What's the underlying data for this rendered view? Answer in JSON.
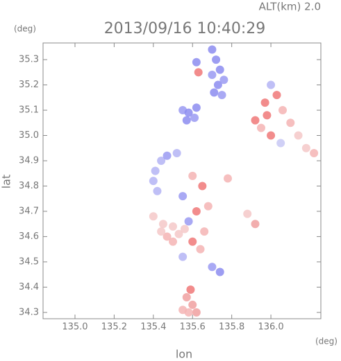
{
  "chart_data": {
    "type": "scatter",
    "title": "2013/09/16 10:40:29",
    "subtitle": "ALT(km) 2.0",
    "x_label": "lon",
    "y_label": "lat",
    "x_unit": "(deg)",
    "y_unit": "(deg)",
    "xlim": [
      134.837,
      136.255
    ],
    "ylim": [
      34.275,
      35.366
    ],
    "xticks": [
      {
        "value": 135,
        "label": "135.0"
      },
      135.2,
      135.4,
      135.6,
      135.8,
      {
        "value": 136,
        "label": "136.0"
      }
    ],
    "yticks": [
      34.3,
      34.4,
      34.5,
      34.6,
      34.7,
      34.8,
      34.9,
      {
        "value": 35,
        "label": "35.0"
      },
      35.1,
      35.2,
      35.3
    ],
    "points": [
      {
        "x": 135.7,
        "y": 35.34,
        "color": "#8c8cf0"
      },
      {
        "x": 135.72,
        "y": 35.3,
        "color": "#8c8cf0"
      },
      {
        "x": 135.74,
        "y": 35.26,
        "color": "#8c8cf0"
      },
      {
        "x": 135.7,
        "y": 35.24,
        "color": "#9a9af2"
      },
      {
        "x": 135.73,
        "y": 35.2,
        "color": "#8c8cf0"
      },
      {
        "x": 135.76,
        "y": 35.22,
        "color": "#9a9af2"
      },
      {
        "x": 135.71,
        "y": 35.17,
        "color": "#8c8cf0"
      },
      {
        "x": 135.75,
        "y": 35.16,
        "color": "#9a9af2"
      },
      {
        "x": 135.62,
        "y": 35.29,
        "color": "#8c8cf0"
      },
      {
        "x": 135.63,
        "y": 35.25,
        "color": "#f07878"
      },
      {
        "x": 135.55,
        "y": 35.1,
        "color": "#9a9af2"
      },
      {
        "x": 135.58,
        "y": 35.09,
        "color": "#8c8cf0"
      },
      {
        "x": 135.61,
        "y": 35.07,
        "color": "#9a9af2"
      },
      {
        "x": 135.57,
        "y": 35.06,
        "color": "#8c8cf0"
      },
      {
        "x": 135.62,
        "y": 35.11,
        "color": "#8c8cf0"
      },
      {
        "x": 135.44,
        "y": 34.9,
        "color": "#b4b4f5"
      },
      {
        "x": 135.41,
        "y": 34.86,
        "color": "#b4b4f5"
      },
      {
        "x": 135.4,
        "y": 34.82,
        "color": "#b4b4f5"
      },
      {
        "x": 135.42,
        "y": 34.78,
        "color": "#b4b4f5"
      },
      {
        "x": 135.47,
        "y": 34.92,
        "color": "#9a9af2"
      },
      {
        "x": 135.52,
        "y": 34.93,
        "color": "#b4b4f5"
      },
      {
        "x": 136.0,
        "y": 35.2,
        "color": "#b4b4f5"
      },
      {
        "x": 136.03,
        "y": 35.16,
        "color": "#f07878"
      },
      {
        "x": 135.97,
        "y": 35.13,
        "color": "#f07878"
      },
      {
        "x": 136.06,
        "y": 35.1,
        "color": "#f5b4b4"
      },
      {
        "x": 136.1,
        "y": 35.05,
        "color": "#f5b4b4"
      },
      {
        "x": 136.14,
        "y": 35.0,
        "color": "#f5c8c8"
      },
      {
        "x": 136.18,
        "y": 34.95,
        "color": "#f5c8c8"
      },
      {
        "x": 136.22,
        "y": 34.93,
        "color": "#f5b4b4"
      },
      {
        "x": 135.92,
        "y": 35.06,
        "color": "#f07878"
      },
      {
        "x": 135.95,
        "y": 35.03,
        "color": "#f5b4b4"
      },
      {
        "x": 136.0,
        "y": 35.0,
        "color": "#f07878"
      },
      {
        "x": 136.05,
        "y": 34.97,
        "color": "#c8c8f5"
      },
      {
        "x": 135.98,
        "y": 35.08,
        "color": "#f07878"
      },
      {
        "x": 135.6,
        "y": 34.84,
        "color": "#f5b4b4"
      },
      {
        "x": 135.65,
        "y": 34.8,
        "color": "#f07878"
      },
      {
        "x": 135.55,
        "y": 34.76,
        "color": "#9a9af2"
      },
      {
        "x": 135.68,
        "y": 34.72,
        "color": "#f5b4b4"
      },
      {
        "x": 135.62,
        "y": 34.7,
        "color": "#f07878"
      },
      {
        "x": 135.58,
        "y": 34.66,
        "color": "#9a9af2"
      },
      {
        "x": 135.66,
        "y": 34.62,
        "color": "#f5b4b4"
      },
      {
        "x": 135.6,
        "y": 34.58,
        "color": "#f07878"
      },
      {
        "x": 135.55,
        "y": 34.52,
        "color": "#b4b4f5"
      },
      {
        "x": 135.7,
        "y": 34.48,
        "color": "#9a9af2"
      },
      {
        "x": 135.74,
        "y": 34.46,
        "color": "#8c8cf0"
      },
      {
        "x": 135.64,
        "y": 34.55,
        "color": "#f5b4b4"
      },
      {
        "x": 135.45,
        "y": 34.65,
        "color": "#f5c8c8"
      },
      {
        "x": 135.5,
        "y": 34.64,
        "color": "#f5c8c8"
      },
      {
        "x": 135.47,
        "y": 34.6,
        "color": "#f5b4b4"
      },
      {
        "x": 135.53,
        "y": 34.61,
        "color": "#f5c8c8"
      },
      {
        "x": 135.44,
        "y": 34.62,
        "color": "#f5c8c8"
      },
      {
        "x": 135.5,
        "y": 34.58,
        "color": "#f5b4b4"
      },
      {
        "x": 135.56,
        "y": 34.63,
        "color": "#f5c8c8"
      },
      {
        "x": 135.57,
        "y": 34.36,
        "color": "#f0a0a0"
      },
      {
        "x": 135.6,
        "y": 34.33,
        "color": "#f0a0a0"
      },
      {
        "x": 135.55,
        "y": 34.31,
        "color": "#f5b4b4"
      },
      {
        "x": 135.62,
        "y": 34.3,
        "color": "#f0a0a0"
      },
      {
        "x": 135.58,
        "y": 34.3,
        "color": "#f5b4b4"
      },
      {
        "x": 135.59,
        "y": 34.39,
        "color": "#f07878"
      },
      {
        "x": 135.78,
        "y": 34.83,
        "color": "#f5b4b4"
      },
      {
        "x": 135.88,
        "y": 34.69,
        "color": "#f5c8c8"
      },
      {
        "x": 135.92,
        "y": 34.65,
        "color": "#f0a0a0"
      },
      {
        "x": 135.4,
        "y": 34.68,
        "color": "#f5c8c8"
      }
    ]
  }
}
